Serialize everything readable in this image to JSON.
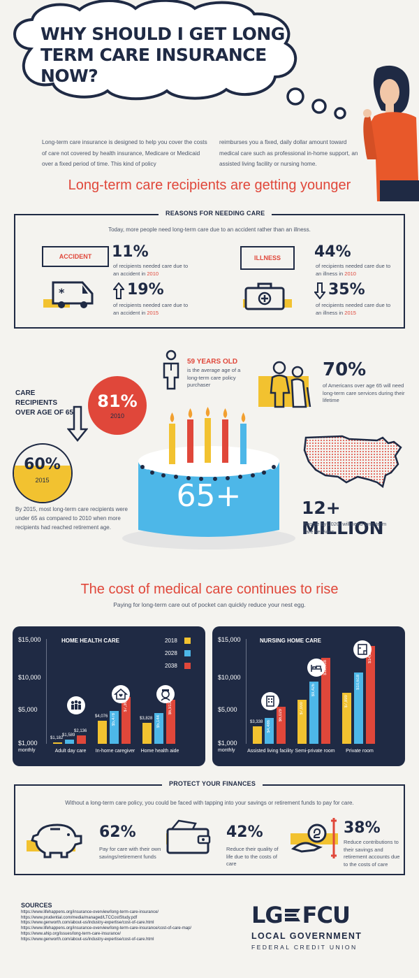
{
  "title": "WHY SHOULD I GET LONG TERM CARE INSURANCE NOW?",
  "intro": {
    "left": "Long-term care insurance is designed to help you cover the costs of care not covered by health insurance, Medicare or Medicaid over a fixed period of time. This kind of policy",
    "right": "reimburses you a fixed, daily dollar amount toward medical care such as professional in-home support, an assisted living facility or nursing home."
  },
  "section1": {
    "heading": "Long-term care recipients are getting younger",
    "panel_title": "REASONS FOR NEEDING CARE",
    "subtitle": "Today, more people need long-term care due to an accident rather than an illness.",
    "accident": {
      "label": "ACCIDENT",
      "pct_2010": "11%",
      "text_2010": "of recipients needed care due to an accident in",
      "year_2010": "2010",
      "pct_2015": "19%",
      "text_2015": "of recipients needed care due to an accident in",
      "year_2015": "2015"
    },
    "illness": {
      "label": "ILLNESS",
      "pct_2010": "44%",
      "text_2010": "of recipients needed care due to an illness in",
      "year_2010": "2010",
      "pct_2015": "35%",
      "text_2015": "of recipients needed care due to an illness in",
      "year_2015": "2015"
    }
  },
  "stats": {
    "age_title": "59 YEARS OLD",
    "age_text": "is the average age of a long-term care policy purchaser",
    "care_recipients": "CARE RECIPIENTS OVER AGE OF 65",
    "pct_2010": "81%",
    "year_2010": "2010",
    "pct_2015": "60%",
    "year_2015": "2015",
    "note_2015": "By 2015, most long-term care recipients were under 65 as compared to 2010 when more recipients had reached retirement age.",
    "americans_pct": "70%",
    "americans_text": "of Americans over age 65 will need long-term care services during their lifetime",
    "cake_label": "65+",
    "million_title": "12+ MILLION",
    "million_text": "People by 2020, will need long-term care services."
  },
  "section2": {
    "heading": "The cost of medical care continues to rise",
    "subtitle": "Paying for long-term care out of pocket can quickly reduce your nest egg."
  },
  "chart_data": [
    {
      "type": "bar",
      "title": "HOME HEALTH CARE",
      "yticks": [
        "$15,000",
        "$10,000",
        "$5,000",
        "$1,000"
      ],
      "ylabel": "monthly",
      "ylim": [
        1000,
        15000
      ],
      "categories": [
        "Adult day care",
        "In-home caregiver",
        "Home health aide"
      ],
      "series": [
        {
          "name": "2018",
          "color": "#f2c230",
          "values": [
            1182,
            4076,
            3828
          ],
          "labels": [
            "$1,182",
            "$4,076",
            "$3,828"
          ]
        },
        {
          "name": "2028",
          "color": "#4db7e8",
          "values": [
            1589,
            5478,
            5144
          ],
          "labels": [
            "$1,589",
            "$5,478",
            "$5,144"
          ]
        },
        {
          "name": "2038",
          "color": "#e0473a",
          "values": [
            2136,
            7362,
            6913
          ],
          "labels": [
            "$2,136",
            "$7,362",
            "$6,913"
          ]
        }
      ]
    },
    {
      "type": "bar",
      "title": "NURSING HOME CARE",
      "yticks": [
        "$15,000",
        "$10,000",
        "$5,000",
        "$1,000"
      ],
      "ylabel": "monthly",
      "ylim": [
        1000,
        15000
      ],
      "categories": [
        "Assisted living facility",
        "Semi-private room",
        "Private room"
      ],
      "series": [
        {
          "name": "2018",
          "color": "#f2c230",
          "values": [
            3338,
            7000,
            7899
          ],
          "labels": [
            "$3,338",
            "$7,000",
            "$7,899"
          ]
        },
        {
          "name": "2028",
          "color": "#4db7e8",
          "values": [
            4486,
            9426,
            10618
          ],
          "labels": [
            "$4,486",
            "$9,426",
            "$10,618"
          ]
        },
        {
          "name": "2038",
          "color": "#e0473a",
          "values": [
            6029,
            12668,
            14268
          ],
          "labels": [
            "$6,029",
            "$12,668",
            "$14,268"
          ]
        }
      ]
    }
  ],
  "finances": {
    "panel_title": "PROTECT YOUR FINANCES",
    "subtitle": "Without a long-term care policy, you could be faced with tapping into your savings or retirement funds to pay for care.",
    "items": [
      {
        "pct": "62%",
        "text": "Pay for care with their own savings/retirement funds"
      },
      {
        "pct": "42%",
        "text": "Reduce their quality of life due to the costs of care"
      },
      {
        "pct": "38%",
        "text": "Reduce contributions to their savings and retirement accounts due to the costs of care"
      }
    ]
  },
  "sources": {
    "title": "SOURCES",
    "links": [
      "https://www.lifehappens.org/insurance-overview/long-term-care-insurance/",
      "https://www.prudential.com/media/managed/LTCCostStudy.pdf",
      "https://www.genworth.com/about-us/industry-expertise/cost-of-care.html",
      "https://www.lifehappens.org/insurance-overview/long-term-care-insurance/cost-of-care-map/",
      "https://www.ahip.org/issues/long-term-care-insurance/",
      "https://www.genworth.com/about-us/industry-expertise/cost-of-care.html"
    ]
  },
  "logo": {
    "mark_left": "LG",
    "mark_right": "FCU",
    "line1": "LOCAL GOVERNMENT",
    "line2": "FEDERAL CREDIT UNION"
  },
  "colors": {
    "navy": "#1f2a44",
    "red": "#e0473a",
    "yellow": "#f2c230",
    "blue": "#4db7e8",
    "bg": "#f4f3ef"
  }
}
